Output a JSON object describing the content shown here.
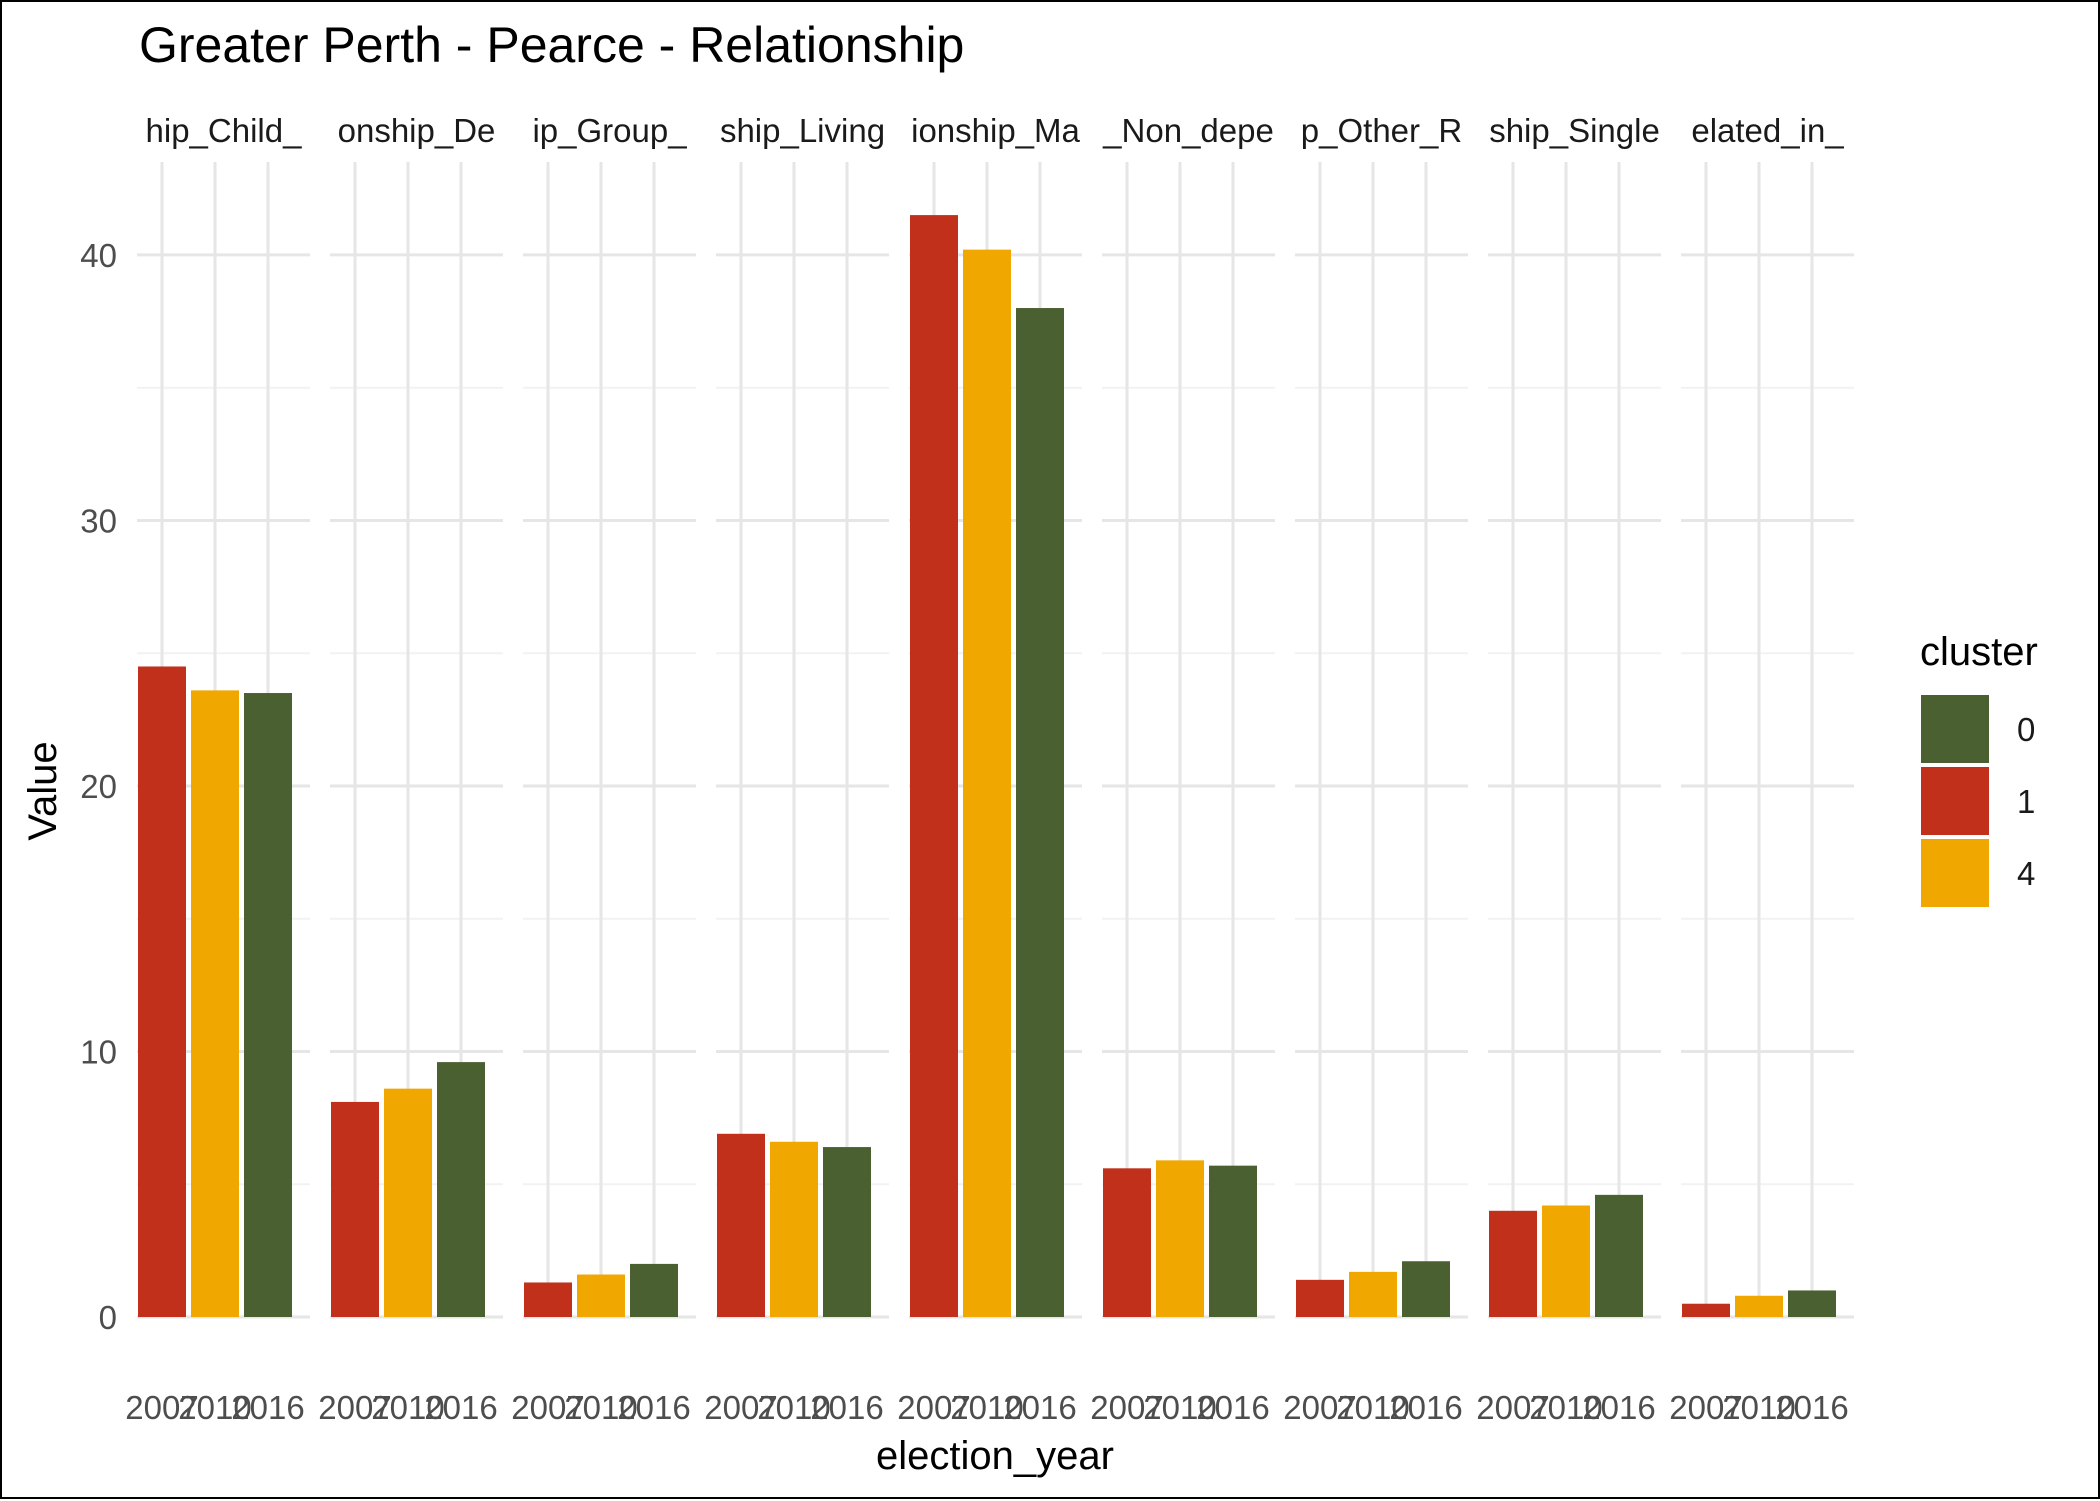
{
  "chart_data": {
    "type": "bar",
    "title": "Greater Perth - Pearce - Relationship",
    "xlabel": "election_year",
    "ylabel": "Value",
    "ylim": [
      0,
      43.5
    ],
    "yticks": [
      0,
      10,
      20,
      30,
      40
    ],
    "grid": true,
    "legend": {
      "title": "cluster",
      "position": "right",
      "items": [
        {
          "label": "0",
          "color": "#4a6030"
        },
        {
          "label": "1",
          "color": "#c0301a"
        },
        {
          "label": "4",
          "color": "#f0a800"
        }
      ]
    },
    "x_tick_labels": [
      "2007",
      "2010",
      "2016"
    ],
    "panels": [
      {
        "strip": "hip_Child_",
        "bars": [
          {
            "year": "2007",
            "cluster": "1",
            "value": 24.5
          },
          {
            "year": "2010",
            "cluster": "4",
            "value": 23.6
          },
          {
            "year": "2016",
            "cluster": "0",
            "value": 23.5
          }
        ]
      },
      {
        "strip": "onship_De",
        "bars": [
          {
            "year": "2007",
            "cluster": "1",
            "value": 8.1
          },
          {
            "year": "2010",
            "cluster": "4",
            "value": 8.6
          },
          {
            "year": "2016",
            "cluster": "0",
            "value": 9.6
          }
        ]
      },
      {
        "strip": "ip_Group_",
        "bars": [
          {
            "year": "2007",
            "cluster": "1",
            "value": 1.3
          },
          {
            "year": "2010",
            "cluster": "4",
            "value": 1.6
          },
          {
            "year": "2016",
            "cluster": "0",
            "value": 2.0
          }
        ]
      },
      {
        "strip": "ship_Living",
        "bars": [
          {
            "year": "2007",
            "cluster": "1",
            "value": 6.9
          },
          {
            "year": "2010",
            "cluster": "4",
            "value": 6.6
          },
          {
            "year": "2016",
            "cluster": "0",
            "value": 6.4
          }
        ]
      },
      {
        "strip": "ionship_Ma",
        "bars": [
          {
            "year": "2007",
            "cluster": "1",
            "value": 41.5
          },
          {
            "year": "2010",
            "cluster": "4",
            "value": 40.2
          },
          {
            "year": "2016",
            "cluster": "0",
            "value": 38.0
          }
        ]
      },
      {
        "strip": "_Non_depe",
        "bars": [
          {
            "year": "2007",
            "cluster": "1",
            "value": 5.6
          },
          {
            "year": "2010",
            "cluster": "4",
            "value": 5.9
          },
          {
            "year": "2016",
            "cluster": "0",
            "value": 5.7
          }
        ]
      },
      {
        "strip": "p_Other_R",
        "bars": [
          {
            "year": "2007",
            "cluster": "1",
            "value": 1.4
          },
          {
            "year": "2010",
            "cluster": "4",
            "value": 1.7
          },
          {
            "year": "2016",
            "cluster": "0",
            "value": 2.1
          }
        ]
      },
      {
        "strip": "ship_Single",
        "bars": [
          {
            "year": "2007",
            "cluster": "1",
            "value": 4.0
          },
          {
            "year": "2010",
            "cluster": "4",
            "value": 4.2
          },
          {
            "year": "2016",
            "cluster": "0",
            "value": 4.6
          }
        ]
      },
      {
        "strip": "elated_in_",
        "bars": [
          {
            "year": "2007",
            "cluster": "1",
            "value": 0.5
          },
          {
            "year": "2010",
            "cluster": "4",
            "value": 0.8
          },
          {
            "year": "2016",
            "cluster": "0",
            "value": 1.0
          }
        ]
      }
    ]
  }
}
